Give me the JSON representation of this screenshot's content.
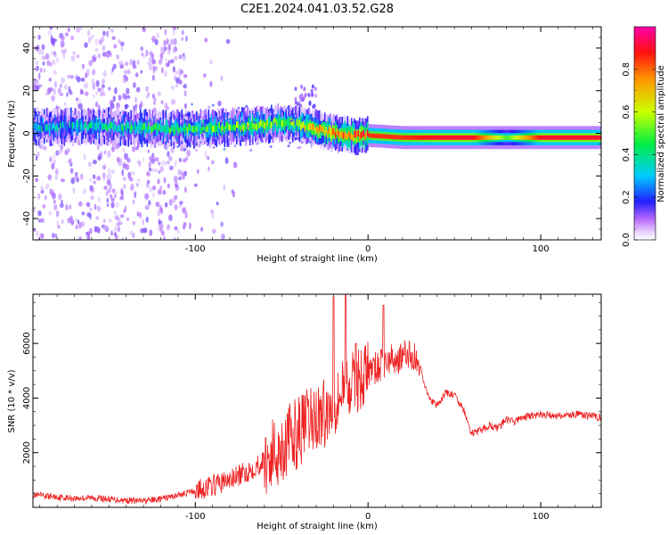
{
  "title": "C2E1.2024.041.03.52.G28",
  "chart_data": [
    {
      "type": "heatmap",
      "title": "C2E1.2024.041.03.52.G28",
      "xlabel": "Height of straight line (km)",
      "ylabel": "Frequency (Hz)",
      "xlim": [
        -194,
        135
      ],
      "ylim": [
        -50,
        50
      ],
      "xticks": [
        -100,
        0,
        100
      ],
      "yticks": [
        -40,
        -20,
        0,
        20,
        40
      ],
      "colorbar": {
        "label": "Normalized spectral amplitude",
        "range": [
          0,
          1
        ],
        "ticks": [
          "0.0",
          "0.2",
          "0.4",
          "0.6",
          "0.8"
        ],
        "colors": [
          "#ffffff",
          "#d8b0ff",
          "#8a2be2",
          "#1e1eff",
          "#00ccff",
          "#00ee66",
          "#ccff00",
          "#ff9900",
          "#ff1111",
          "#ff00aa"
        ]
      },
      "ridge": {
        "x": [
          -194,
          -150,
          -120,
          -100,
          -80,
          -60,
          -50,
          -40,
          -30,
          -20,
          -10,
          0,
          20,
          40,
          60,
          80,
          100,
          135
        ],
        "y": [
          3,
          3,
          2,
          2,
          3,
          4,
          5,
          4,
          2,
          0,
          -1,
          -1,
          -2,
          -2,
          -2,
          -2,
          -2,
          -2
        ],
        "amplitude": [
          0.3,
          0.35,
          0.4,
          0.45,
          0.5,
          0.55,
          0.5,
          0.55,
          0.7,
          0.75,
          0.8,
          0.85,
          0.85,
          0.9,
          0.9,
          0.5,
          0.9,
          0.9
        ]
      }
    },
    {
      "type": "line",
      "xlabel": "Height of straight line (km)",
      "ylabel": "SNR (10 * v/v)",
      "xlim": [
        -194,
        135
      ],
      "ylim": [
        0,
        7800
      ],
      "xticks": [
        -100,
        0,
        100
      ],
      "yticks": [
        2000,
        4000,
        6000
      ],
      "color": "#ee2222",
      "x": [
        -194,
        -180,
        -170,
        -160,
        -150,
        -140,
        -130,
        -120,
        -110,
        -100,
        -90,
        -80,
        -70,
        -60,
        -50,
        -40,
        -30,
        -20,
        -15,
        -10,
        -5,
        0,
        5,
        10,
        20,
        25,
        30,
        35,
        40,
        45,
        50,
        55,
        60,
        65,
        70,
        75,
        80,
        85,
        90,
        100,
        110,
        120,
        135
      ],
      "values": [
        450,
        380,
        330,
        350,
        300,
        260,
        230,
        300,
        450,
        600,
        800,
        1000,
        1300,
        1700,
        2200,
        2800,
        3300,
        3600,
        4300,
        4400,
        4700,
        5000,
        5100,
        5300,
        5500,
        5600,
        5200,
        4000,
        3700,
        4200,
        4100,
        3600,
        2700,
        2800,
        3000,
        2900,
        3200,
        3150,
        3300,
        3400,
        3350,
        3400,
        3300
      ],
      "spikes": [
        {
          "x": -20,
          "value": 7700
        },
        {
          "x": -13,
          "value": 7800
        },
        {
          "x": 9,
          "value": 7400
        },
        {
          "x": -7,
          "value": 6000
        }
      ]
    }
  ]
}
